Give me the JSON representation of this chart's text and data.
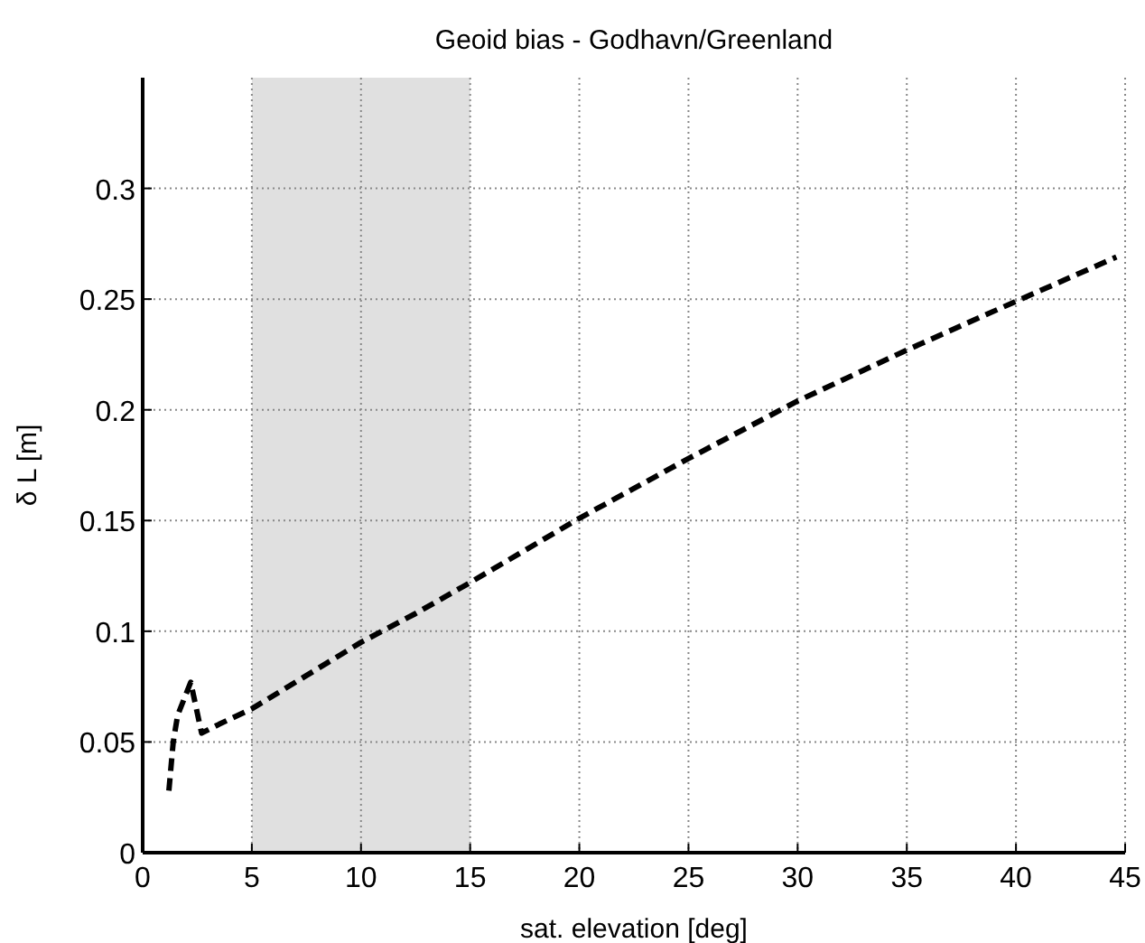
{
  "chart_data": {
    "type": "line",
    "title": "Geoid bias - Godhavn/Greenland",
    "xlabel": "sat. elevation [deg]",
    "ylabel": "δ L [m]",
    "series": [
      {
        "color": "#000000",
        "x": [
          1.2,
          1.4,
          1.6,
          2.2,
          2.7,
          3.5,
          5,
          7.5,
          10,
          12.5,
          15,
          20,
          25,
          30,
          35,
          40,
          44.6
        ],
        "values": [
          0.028,
          0.05,
          0.062,
          0.077,
          0.054,
          0.058,
          0.065,
          0.08,
          0.095,
          0.108,
          0.122,
          0.151,
          0.178,
          0.204,
          0.227,
          0.249,
          0.269
        ]
      }
    ],
    "xlim": [
      0,
      45
    ],
    "ylim": [
      0,
      0.35
    ],
    "xticks": [
      0,
      5,
      10,
      15,
      20,
      25,
      30,
      35,
      40,
      45
    ],
    "yticks": [
      0,
      0.05,
      0.1,
      0.15,
      0.2,
      0.25,
      0.3
    ],
    "bands": [
      {
        "axis": "x",
        "from": 5,
        "to": 15,
        "color": "#e0e0e0"
      }
    ],
    "grid": true,
    "line_style": "dashed",
    "marker": "none"
  }
}
